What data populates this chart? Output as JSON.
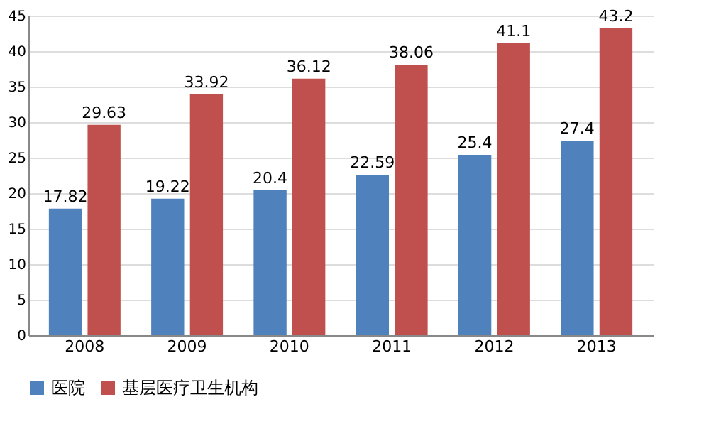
{
  "chart_data": {
    "type": "bar",
    "categories": [
      "2008",
      "2009",
      "2010",
      "2011",
      "2012",
      "2013"
    ],
    "series": [
      {
        "name": "医院",
        "color": "#4f81bd",
        "values": [
          17.82,
          19.22,
          20.4,
          22.59,
          25.4,
          27.4
        ]
      },
      {
        "name": "基层医疗卫生机构",
        "color": "#c0504d",
        "values": [
          29.63,
          33.92,
          36.12,
          38.06,
          41.1,
          43.2
        ]
      }
    ],
    "ylim": [
      0,
      45
    ],
    "yticks": [
      0,
      5,
      10,
      15,
      20,
      25,
      30,
      35,
      40,
      45
    ],
    "grid": "y",
    "legend": "bottom",
    "data_labels": true
  }
}
